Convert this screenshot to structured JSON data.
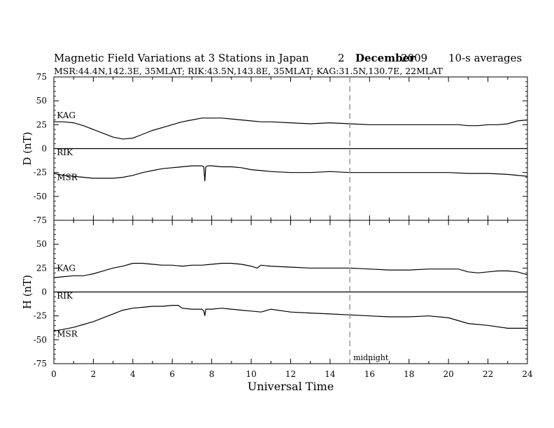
{
  "header": {
    "title": "Magnetic Field Variations at 3 Stations in Japan",
    "day": "2",
    "month": "December",
    "year": "2009",
    "averaging": "10-s averages",
    "stations": "MSR:44.4N,142.3E, 35MLAT;  RIK:43.5N,143.8E, 35MLAT;  KAG:31.5N,130.7E, 22MLAT"
  },
  "chart_data": [
    {
      "type": "line",
      "id": "D",
      "ylabel": "D (nT)",
      "ylim": [
        -75,
        75
      ],
      "yticks": [
        "75",
        "50",
        "25",
        "0",
        "-25",
        "-50",
        "-75"
      ],
      "xlim": [
        0,
        24
      ],
      "reference_line": 0,
      "series": [
        {
          "name": "KAG",
          "x": [
            0,
            0.5,
            1,
            1.5,
            2,
            2.5,
            3,
            3.5,
            4,
            4.5,
            5,
            5.5,
            6,
            6.5,
            7,
            7.5,
            8,
            8.5,
            9,
            9.5,
            10,
            10.5,
            11,
            12,
            13,
            14,
            15,
            16,
            17,
            18,
            19,
            20,
            20.5,
            21,
            21.5,
            22,
            22.5,
            23,
            23.5,
            24
          ],
          "values": [
            28,
            28,
            27,
            24,
            20,
            16,
            12,
            10,
            11,
            15,
            19,
            22,
            25,
            28,
            30,
            32,
            32,
            32,
            31,
            30,
            29,
            28,
            28,
            27,
            26,
            27,
            26,
            25,
            25,
            25,
            25,
            25,
            25,
            24,
            24,
            25,
            25,
            26,
            29,
            30
          ]
        },
        {
          "name": "RIK",
          "x": [
            0,
            24
          ],
          "values": [
            0,
            0
          ]
        },
        {
          "name": "MSR",
          "x": [
            0,
            0.5,
            1,
            1.5,
            2,
            2.5,
            3,
            3.5,
            4,
            4.5,
            5,
            5.5,
            6,
            6.5,
            7,
            7.5,
            7.6,
            7.65,
            7.7,
            7.8,
            8,
            8.5,
            9,
            9.5,
            10,
            10.5,
            11,
            12,
            13,
            14,
            15,
            16,
            17,
            18,
            19,
            20,
            21,
            22,
            23,
            24
          ],
          "values": [
            -26,
            -28,
            -29,
            -30,
            -31,
            -31,
            -31,
            -30,
            -28,
            -25,
            -23,
            -21,
            -20,
            -19,
            -18,
            -18,
            -19,
            -34,
            -19,
            -18,
            -18,
            -19,
            -19,
            -20,
            -22,
            -23,
            -24,
            -25,
            -25,
            -24,
            -25,
            -25,
            -25,
            -25,
            -25,
            -25,
            -26,
            -26,
            -27,
            -29
          ]
        }
      ],
      "labels": [
        {
          "text": "KAG",
          "x": 0.15,
          "y": 32
        },
        {
          "text": "RIK",
          "x": 0.15,
          "y": -7
        },
        {
          "text": "MSR",
          "x": 0.15,
          "y": -33
        }
      ]
    },
    {
      "type": "line",
      "id": "H",
      "ylabel": "H (nT)",
      "ylim": [
        -75,
        75
      ],
      "yticks": [
        "75",
        "50",
        "25",
        "0",
        "-25",
        "-50",
        "-75"
      ],
      "xlim": [
        0,
        24
      ],
      "reference_line": 0,
      "xticks": [
        "0",
        "2",
        "4",
        "6",
        "8",
        "10",
        "12",
        "14",
        "16",
        "18",
        "20",
        "22",
        "24"
      ],
      "xlabel": "Universal Time",
      "annotation": {
        "text": "midnight",
        "x": 15
      },
      "series": [
        {
          "name": "KAG",
          "x": [
            0,
            0.5,
            1,
            1.5,
            2,
            2.5,
            3,
            3.5,
            4,
            4.5,
            5,
            5.5,
            6,
            6.5,
            7,
            7.5,
            8,
            8.5,
            9,
            9.5,
            10,
            10.3,
            10.5,
            11,
            12,
            13,
            14,
            15,
            16,
            17,
            18,
            19,
            20,
            20.5,
            21,
            21.5,
            22,
            22.5,
            23,
            23.5,
            24
          ],
          "values": [
            15,
            16,
            17,
            17,
            19,
            22,
            25,
            27,
            30,
            30,
            29,
            28,
            28,
            27,
            28,
            28,
            29,
            30,
            30,
            29,
            27,
            25,
            28,
            27,
            26,
            25,
            25,
            25,
            24,
            23,
            23,
            24,
            24,
            24,
            21,
            20,
            21,
            22,
            22,
            21,
            18
          ]
        },
        {
          "name": "RIK",
          "x": [
            0,
            24
          ],
          "values": [
            0,
            0
          ]
        },
        {
          "name": "MSR",
          "x": [
            0,
            0.5,
            1,
            1.5,
            2,
            2.5,
            3,
            3.5,
            4,
            4.5,
            5,
            5.5,
            6,
            6.3,
            6.5,
            7,
            7.5,
            7.6,
            7.65,
            7.7,
            8,
            8.5,
            9,
            9.5,
            10,
            10.5,
            11,
            12,
            13,
            14,
            15,
            16,
            17,
            18,
            19,
            20,
            20.5,
            21,
            22,
            23,
            24
          ],
          "values": [
            -41,
            -39,
            -37,
            -34,
            -31,
            -27,
            -23,
            -19,
            -17,
            -16,
            -15,
            -15,
            -14,
            -14,
            -17,
            -18,
            -18,
            -20,
            -25,
            -18,
            -18,
            -17,
            -18,
            -19,
            -20,
            -21,
            -18,
            -21,
            -22,
            -23,
            -24,
            -25,
            -26,
            -26,
            -25,
            -27,
            -30,
            -33,
            -35,
            -38,
            -38
          ]
        }
      ],
      "labels": [
        {
          "text": "KAG",
          "x": 0.15,
          "y": 22
        },
        {
          "text": "RIK",
          "x": 0.15,
          "y": -7
        },
        {
          "text": "MSR",
          "x": 0.15,
          "y": -47
        }
      ]
    }
  ]
}
